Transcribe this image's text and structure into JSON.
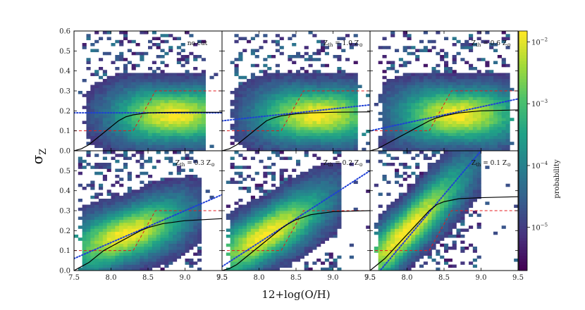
{
  "chart_data": {
    "type": "heatmap",
    "layout": "2x3 panels with shared axes and a shared colorbar",
    "xlabel": "12+log(O/H)",
    "ylabel_main": "σ",
    "ylabel_sub": "Z",
    "xlim": [
      7.5,
      9.5
    ],
    "ylim": [
      0.0,
      0.6
    ],
    "x_ticks_bottom": [
      [
        "7.5",
        "8.0",
        "8.5",
        "9.0",
        "9.5"
      ],
      [
        "7.5",
        "8.0",
        "8.5",
        "9.0",
        "9.5"
      ],
      [
        "7.5",
        "8.0",
        "8.5",
        "9.0",
        "9.5"
      ]
    ],
    "y_ticks_top": [
      "0.0",
      "0.1",
      "0.2",
      "0.3",
      "0.4",
      "0.5",
      "0.6"
    ],
    "y_ticks_bottom": [
      "0.0",
      "0.1",
      "0.2",
      "0.3",
      "0.4",
      "0.5"
    ],
    "colorbar": {
      "label": "probability",
      "scale": "log",
      "ticks": [
        {
          "base": "10",
          "exp": "−2",
          "value": 0.01
        },
        {
          "base": "10",
          "exp": "−3",
          "value": 0.001
        },
        {
          "base": "10",
          "exp": "−4",
          "value": 0.0001
        },
        {
          "base": "10",
          "exp": "−5",
          "value": 1e-05
        }
      ],
      "range": [
        2e-06,
        0.015
      ],
      "colormap": [
        "#440154",
        "#46327e",
        "#365c8d",
        "#277f8e",
        "#1fa187",
        "#4ac16d",
        "#a0da39",
        "#fde725"
      ]
    },
    "panels": [
      {
        "label_plain": "no cut",
        "label_main": "",
        "label_sub": "",
        "label_tail": "",
        "model_sigma_at_8_0": 0.19,
        "model_sigma_at_8_5": 0.19,
        "fit_curve": [
          [
            7.5,
            0.0
          ],
          [
            7.6,
            0.01
          ],
          [
            7.7,
            0.03
          ],
          [
            7.8,
            0.06
          ],
          [
            7.9,
            0.09
          ],
          [
            8.0,
            0.12
          ],
          [
            8.1,
            0.15
          ],
          [
            8.2,
            0.17
          ],
          [
            8.3,
            0.18
          ],
          [
            8.4,
            0.185
          ],
          [
            8.5,
            0.19
          ],
          [
            8.7,
            0.192
          ],
          [
            9.0,
            0.193
          ],
          [
            9.5,
            0.193
          ]
        ],
        "cloud": {
          "mode": 8.85,
          "sigma_peak": 0.18,
          "low_edge": 7.65,
          "high_edge": 9.2,
          "tilt": 0.0
        }
      },
      {
        "label_plain": "",
        "label_main": "Z",
        "label_sub": "th",
        "label_tail": " = 1.0 Z",
        "model_sigma_at_8_0": 0.17,
        "model_sigma_at_8_5": 0.19,
        "fit_curve": [
          [
            7.5,
            0.0
          ],
          [
            7.6,
            0.01
          ],
          [
            7.7,
            0.03
          ],
          [
            7.8,
            0.06
          ],
          [
            7.9,
            0.09
          ],
          [
            8.0,
            0.12
          ],
          [
            8.1,
            0.15
          ],
          [
            8.2,
            0.165
          ],
          [
            8.3,
            0.175
          ],
          [
            8.4,
            0.18
          ],
          [
            8.5,
            0.185
          ],
          [
            8.7,
            0.19
          ],
          [
            9.0,
            0.193
          ],
          [
            9.5,
            0.195
          ]
        ],
        "cloud": {
          "mode": 8.8,
          "sigma_peak": 0.18,
          "low_edge": 7.65,
          "high_edge": 9.25,
          "tilt": 0.0
        }
      },
      {
        "label_plain": "",
        "label_main": "Z",
        "label_sub": "th",
        "label_tail": " = 0.6 Z",
        "model_sigma_at_8_0": 0.14,
        "model_sigma_at_8_5": 0.18,
        "fit_curve": [
          [
            7.5,
            0.0
          ],
          [
            7.6,
            0.01
          ],
          [
            7.7,
            0.03
          ],
          [
            7.8,
            0.05
          ],
          [
            7.9,
            0.07
          ],
          [
            8.0,
            0.09
          ],
          [
            8.1,
            0.11
          ],
          [
            8.2,
            0.13
          ],
          [
            8.3,
            0.15
          ],
          [
            8.4,
            0.165
          ],
          [
            8.5,
            0.175
          ],
          [
            8.7,
            0.19
          ],
          [
            9.0,
            0.2
          ],
          [
            9.5,
            0.205
          ]
        ],
        "cloud": {
          "mode": 8.7,
          "sigma_peak": 0.18,
          "low_edge": 7.65,
          "high_edge": 9.3,
          "tilt": 0.0
        }
      },
      {
        "label_plain": "",
        "label_main": "Z",
        "label_sub": "th",
        "label_tail": " = 0.3 Z",
        "model_sigma_at_8_0": 0.14,
        "model_sigma_at_8_5": 0.22,
        "fit_curve": [
          [
            7.5,
            0.0
          ],
          [
            7.6,
            0.02
          ],
          [
            7.7,
            0.04
          ],
          [
            7.8,
            0.07
          ],
          [
            7.9,
            0.1
          ],
          [
            8.0,
            0.12
          ],
          [
            8.1,
            0.14
          ],
          [
            8.2,
            0.16
          ],
          [
            8.3,
            0.18
          ],
          [
            8.4,
            0.2
          ],
          [
            8.5,
            0.215
          ],
          [
            8.7,
            0.235
          ],
          [
            9.0,
            0.25
          ],
          [
            9.5,
            0.26
          ]
        ],
        "cloud": {
          "mode": 8.2,
          "sigma_peak": 0.18,
          "low_edge": 7.6,
          "high_edge": 9.1,
          "tilt": 0.12
        }
      },
      {
        "label_plain": "",
        "label_main": "Z",
        "label_sub": "th",
        "label_tail": " = 0.2 Z",
        "model_sigma_at_8_0": 0.14,
        "model_sigma_at_8_5": 0.26,
        "fit_curve": [
          [
            7.5,
            0.0
          ],
          [
            7.6,
            0.01
          ],
          [
            7.7,
            0.03
          ],
          [
            7.8,
            0.06
          ],
          [
            7.9,
            0.09
          ],
          [
            8.0,
            0.12
          ],
          [
            8.1,
            0.15
          ],
          [
            8.2,
            0.18
          ],
          [
            8.3,
            0.21
          ],
          [
            8.4,
            0.235
          ],
          [
            8.5,
            0.255
          ],
          [
            8.7,
            0.28
          ],
          [
            9.0,
            0.295
          ],
          [
            9.5,
            0.3
          ]
        ],
        "cloud": {
          "mode": 8.1,
          "sigma_peak": 0.18,
          "low_edge": 7.6,
          "high_edge": 9.0,
          "tilt": 0.2
        }
      },
      {
        "label_plain": "",
        "label_main": "Z",
        "label_sub": "th",
        "label_tail": " = 0.1 Z",
        "model_sigma_at_8_0": 0.16,
        "model_sigma_at_8_5": 0.38,
        "fit_curve": [
          [
            7.5,
            0.0
          ],
          [
            7.6,
            0.03
          ],
          [
            7.7,
            0.06
          ],
          [
            7.8,
            0.1
          ],
          [
            7.9,
            0.14
          ],
          [
            8.0,
            0.18
          ],
          [
            8.1,
            0.22
          ],
          [
            8.2,
            0.26
          ],
          [
            8.3,
            0.3
          ],
          [
            8.4,
            0.33
          ],
          [
            8.5,
            0.345
          ],
          [
            8.7,
            0.36
          ],
          [
            9.0,
            0.365
          ],
          [
            9.5,
            0.37
          ]
        ],
        "cloud": {
          "mode": 8.0,
          "sigma_peak": 0.2,
          "low_edge": 7.6,
          "high_edge": 8.9,
          "tilt": 0.35
        }
      }
    ],
    "input_model": {
      "style": "red dashed",
      "points": [
        [
          7.5,
          0.1
        ],
        [
          8.3,
          0.1
        ],
        [
          8.6,
          0.3
        ],
        [
          9.5,
          0.3
        ]
      ]
    },
    "linear_fit_style": "blue dotted",
    "fit_style": "black solid"
  }
}
